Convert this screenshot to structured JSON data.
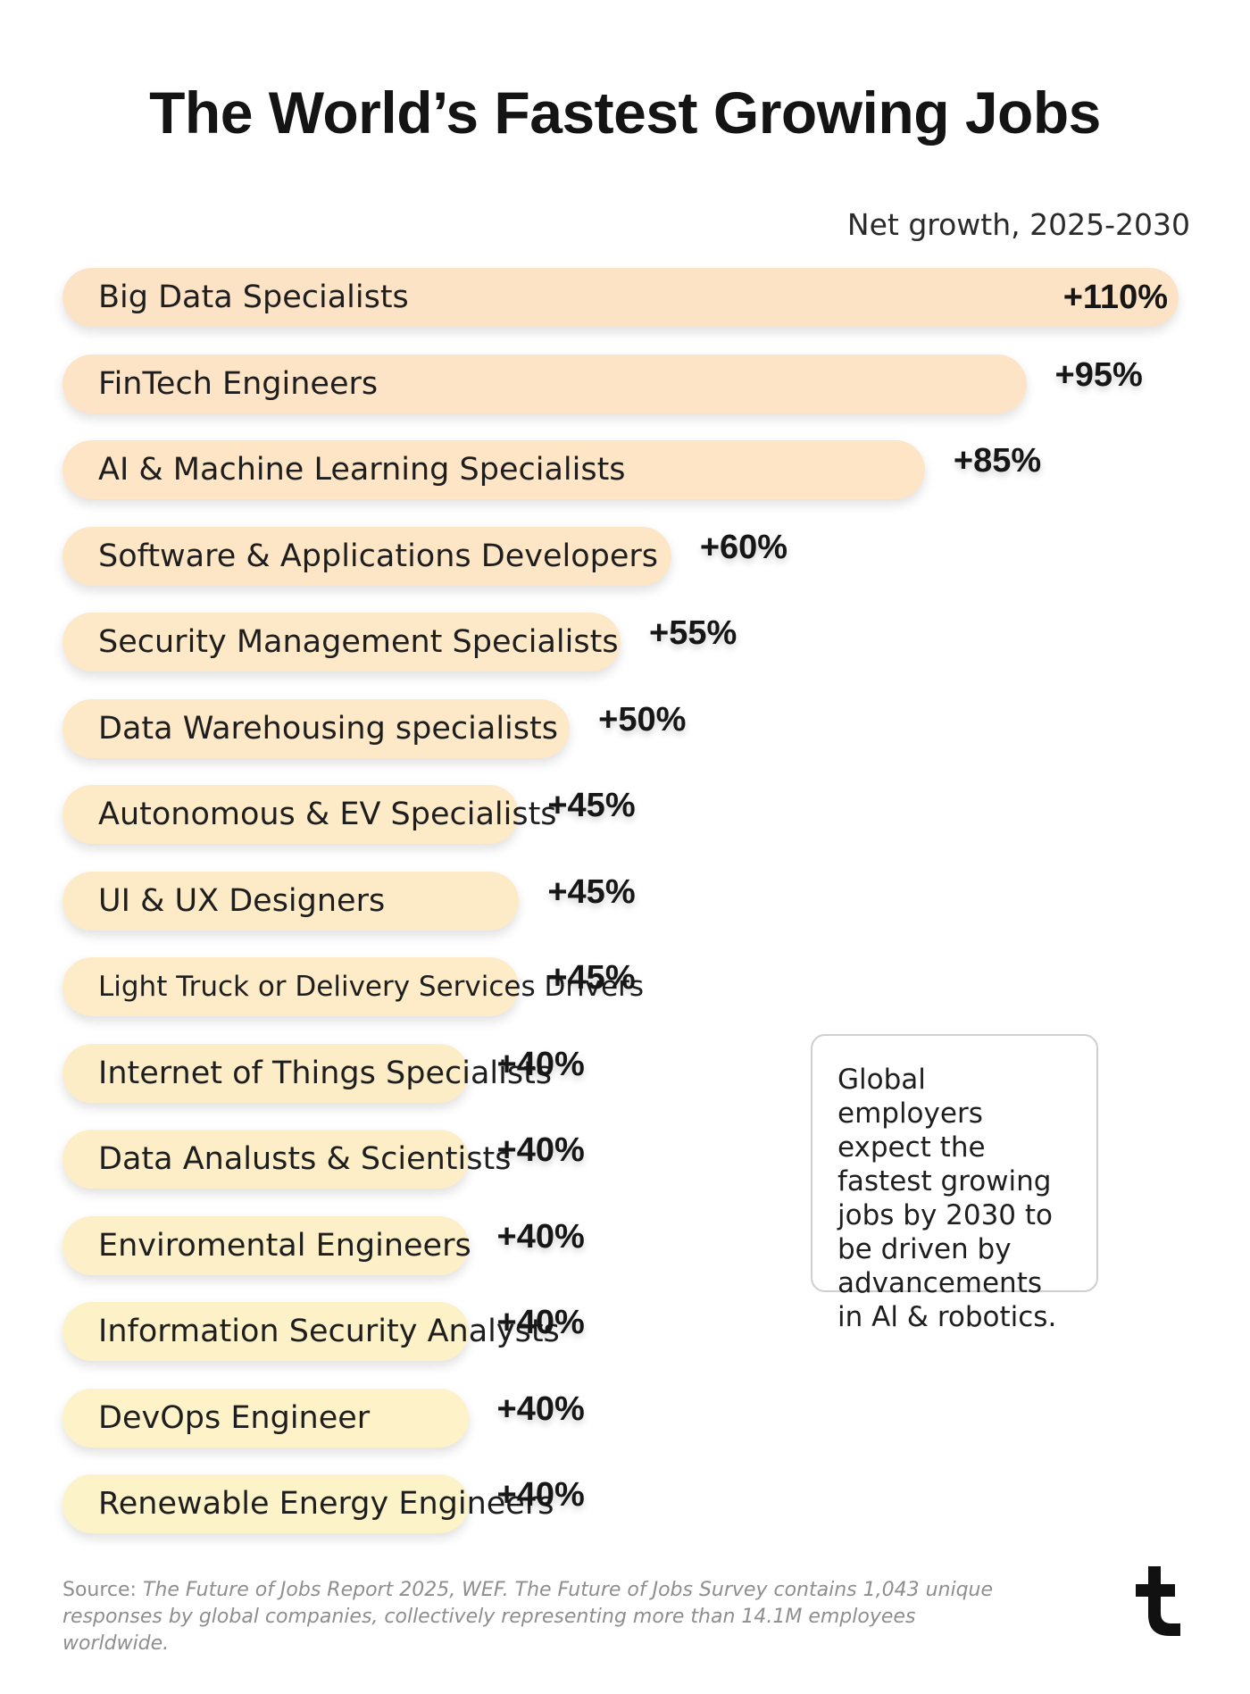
{
  "chart_data": {
    "type": "bar",
    "orientation": "horizontal",
    "title": "The World’s Fastest Growing Jobs",
    "subtitle": "Net growth, 2025-2030",
    "categories": [
      "Big Data Specialists",
      "FinTech Engineers",
      "AI & Machine Learning Specialists",
      "Software & Applications Developers",
      "Security Management Specialists",
      "Data Warehousing specialists",
      "Autonomous & EV Specialists",
      "UI & UX Designers",
      "Light Truck or Delivery Services Drivers",
      "Internet of Things Specialists",
      "Data Analusts & Scientists",
      "Enviromental Engineers",
      "Information Security Analysts",
      "DevOps Engineer",
      "Renewable Energy Engineers"
    ],
    "values": [
      110,
      95,
      85,
      60,
      55,
      50,
      45,
      45,
      45,
      40,
      40,
      40,
      40,
      40,
      40
    ],
    "value_labels": [
      "+110%",
      "+95%",
      "+85%",
      "+60%",
      "+55%",
      "+50%",
      "+45%",
      "+45%",
      "+45%",
      "+40%",
      "+40%",
      "+40%",
      "+40%",
      "+40%",
      "+40%"
    ],
    "unit": "%",
    "bar_color_top": "#fde3c6",
    "bar_color_bottom": "#fdf3c8"
  },
  "note": "Global employers expect the fastest growing jobs by 2030 to be driven by advancements in Al & robotics.",
  "source": {
    "prefix": "Source: ",
    "text": "The Future of Jobs Report 2025, WEF. The Future of Jobs Survey contains 1,043 unique responses by global companies, collectively representing more than 14.1M employees worldwide."
  },
  "logo_icon": "brand-logo-icon"
}
